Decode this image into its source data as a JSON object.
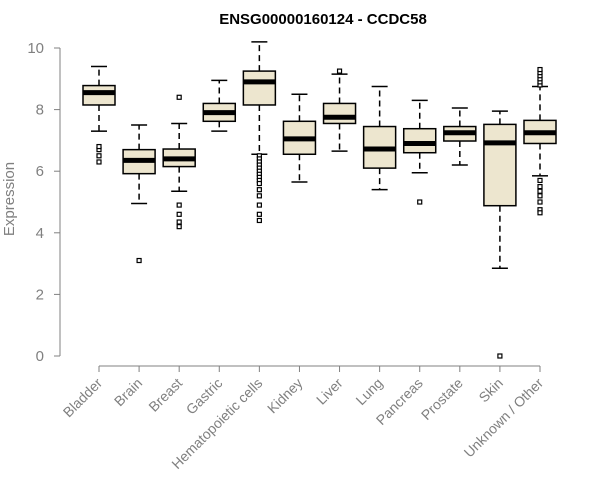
{
  "chart_data": {
    "type": "boxplot",
    "title": "ENSG00000160124 - CCDC58",
    "xlabel": "",
    "ylabel": "Expression",
    "ylim": [
      0,
      10.2
    ],
    "yticks": [
      0,
      2,
      4,
      6,
      8,
      10
    ],
    "grid": false,
    "legend": "none",
    "colors": {
      "box_fill": "#ede6cf",
      "box_stroke": "#000000",
      "axis": "#808080",
      "text": "#808080"
    },
    "categories": [
      "Bladder",
      "Brain",
      "Breast",
      "Gastric",
      "Hematopoietic cells",
      "Kidney",
      "Liver",
      "Lung",
      "Pancreas",
      "Prostate",
      "Skin",
      "Unknown / Other"
    ],
    "boxes": [
      {
        "category": "Bladder",
        "q1": 8.15,
        "median": 8.55,
        "q3": 8.78,
        "whisker_low": 7.3,
        "whisker_high": 9.4,
        "outliers": [
          6.3,
          6.5,
          6.7,
          6.8
        ]
      },
      {
        "category": "Brain",
        "q1": 5.92,
        "median": 6.35,
        "q3": 6.7,
        "whisker_low": 4.95,
        "whisker_high": 7.5,
        "outliers": [
          3.1
        ]
      },
      {
        "category": "Breast",
        "q1": 6.15,
        "median": 6.4,
        "q3": 6.72,
        "whisker_low": 5.35,
        "whisker_high": 7.55,
        "outliers": [
          8.4,
          4.2,
          4.35,
          4.6,
          4.9
        ]
      },
      {
        "category": "Gastric",
        "q1": 7.62,
        "median": 7.9,
        "q3": 8.2,
        "whisker_low": 7.3,
        "whisker_high": 8.95,
        "outliers": []
      },
      {
        "category": "Hematopoietic cells",
        "q1": 8.15,
        "median": 8.9,
        "q3": 9.25,
        "whisker_low": 6.55,
        "whisker_high": 10.2,
        "outliers": [
          6.5,
          6.4,
          6.3,
          6.2,
          6.1,
          6.0,
          5.9,
          5.8,
          5.7,
          5.6,
          5.4,
          5.2,
          4.9,
          4.6,
          4.4
        ]
      },
      {
        "category": "Kidney",
        "q1": 6.55,
        "median": 7.05,
        "q3": 7.62,
        "whisker_low": 5.65,
        "whisker_high": 8.5,
        "outliers": []
      },
      {
        "category": "Liver",
        "q1": 7.55,
        "median": 7.75,
        "q3": 8.2,
        "whisker_low": 6.65,
        "whisker_high": 9.15,
        "outliers": [
          9.25
        ]
      },
      {
        "category": "Lung",
        "q1": 6.1,
        "median": 6.72,
        "q3": 7.45,
        "whisker_low": 5.4,
        "whisker_high": 8.75,
        "outliers": []
      },
      {
        "category": "Pancreas",
        "q1": 6.6,
        "median": 6.9,
        "q3": 7.38,
        "whisker_low": 5.95,
        "whisker_high": 8.3,
        "outliers": [
          5.0
        ]
      },
      {
        "category": "Prostate",
        "q1": 6.98,
        "median": 7.25,
        "q3": 7.45,
        "whisker_low": 6.2,
        "whisker_high": 8.05,
        "outliers": []
      },
      {
        "category": "Skin",
        "q1": 4.88,
        "median": 6.92,
        "q3": 7.52,
        "whisker_low": 2.85,
        "whisker_high": 7.95,
        "outliers": [
          0.0
        ]
      },
      {
        "category": "Unknown / Other",
        "q1": 6.9,
        "median": 7.25,
        "q3": 7.65,
        "whisker_low": 5.85,
        "whisker_high": 8.75,
        "outliers": [
          8.8,
          8.9,
          9.0,
          9.1,
          9.2,
          9.3,
          5.7,
          5.5,
          5.35,
          5.2,
          5.0,
          4.75,
          4.65
        ]
      }
    ]
  }
}
